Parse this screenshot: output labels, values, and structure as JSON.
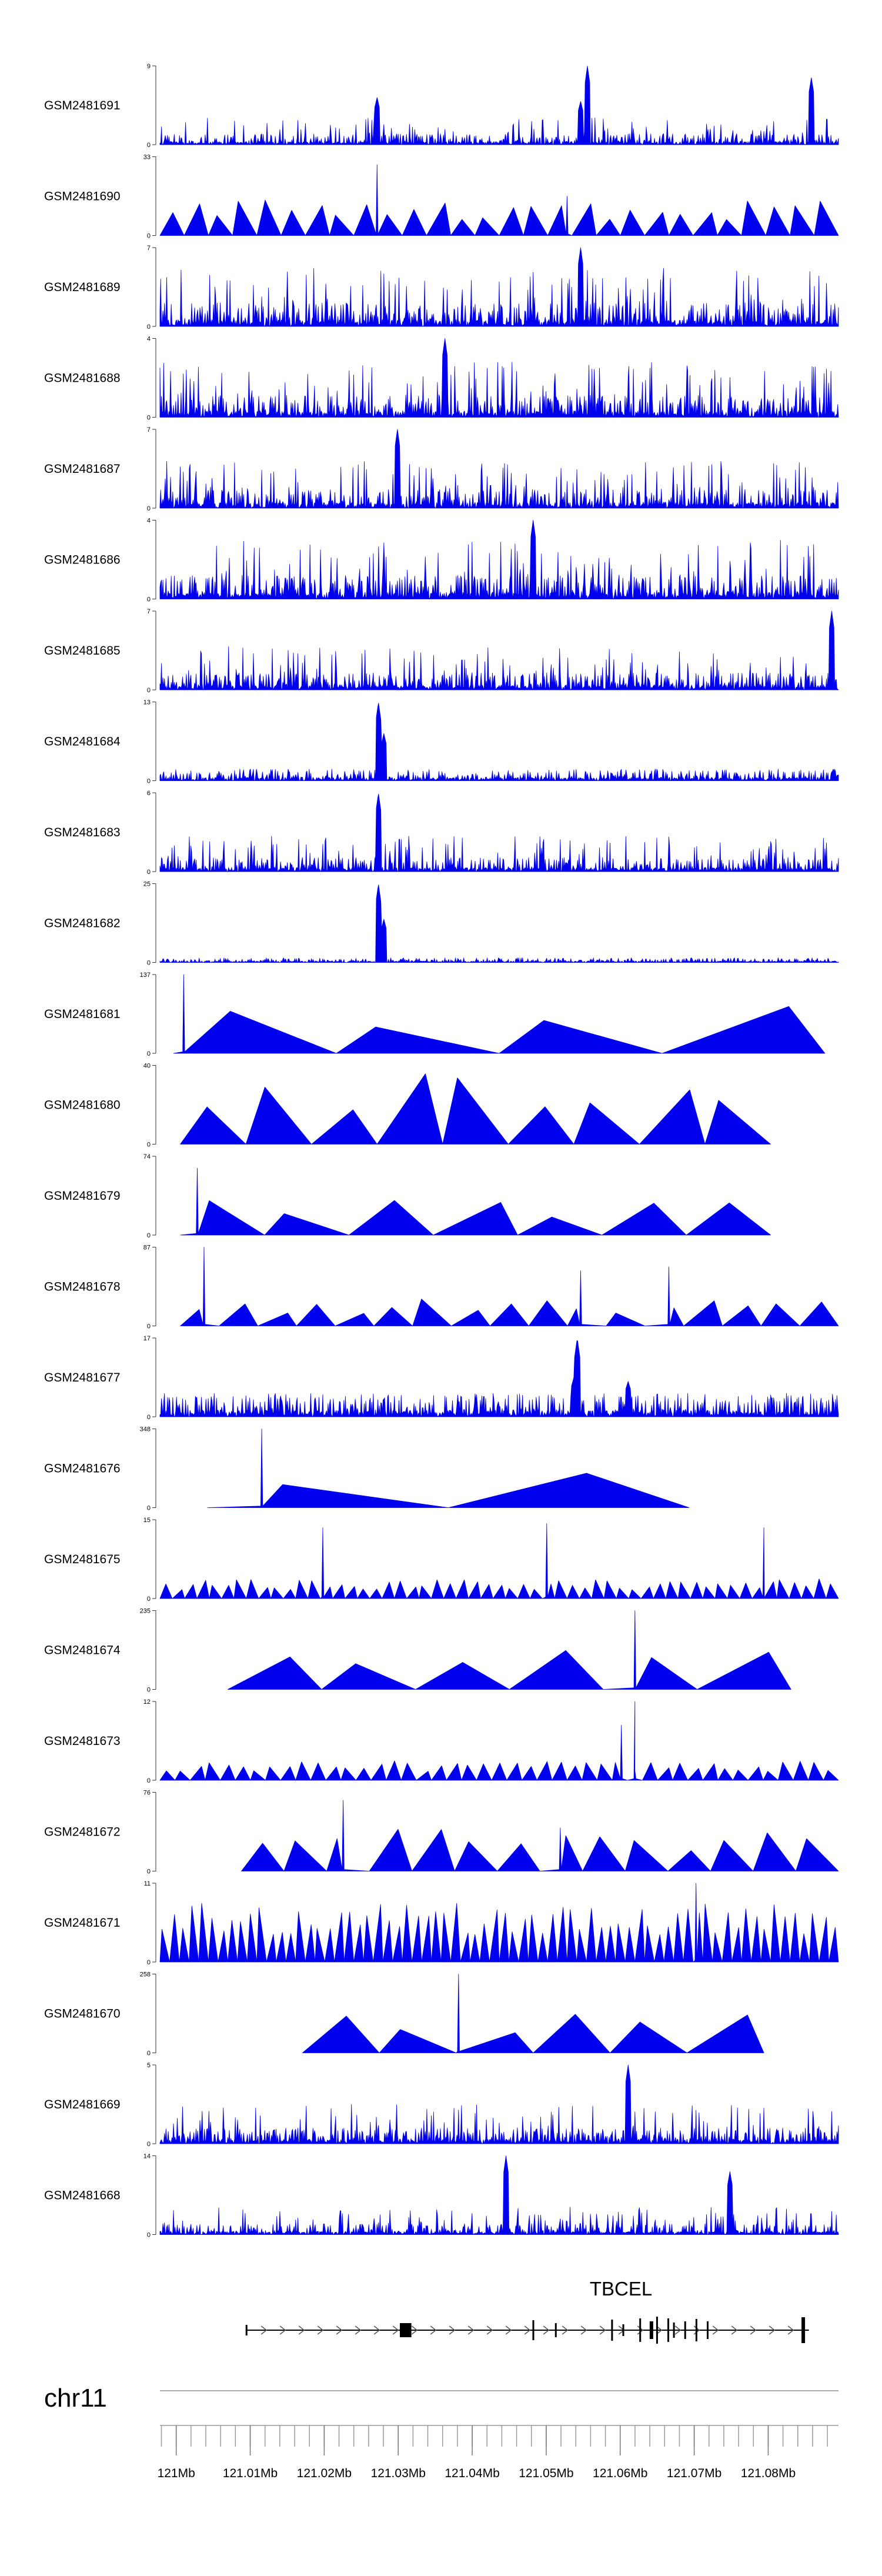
{
  "chart_data": {
    "type": "area",
    "chromosome": "chr11",
    "gene": {
      "name": "TBCEL",
      "strand": "+",
      "start_mb": 121.0095,
      "end_mb": 121.0855
    },
    "x_axis": {
      "unit": "Mb",
      "range_mb": [
        120.9978,
        121.0895
      ],
      "ticks": [
        {
          "value": 121.0,
          "label": "121Mb"
        },
        {
          "value": 121.01,
          "label": "121.01Mb"
        },
        {
          "value": 121.02,
          "label": "121.02Mb"
        },
        {
          "value": 121.03,
          "label": "121.03Mb"
        },
        {
          "value": 121.04,
          "label": "121.04Mb"
        },
        {
          "value": 121.05,
          "label": "121.05Mb"
        },
        {
          "value": 121.06,
          "label": "121.06Mb"
        },
        {
          "value": 121.07,
          "label": "121.07Mb"
        },
        {
          "value": 121.08,
          "label": "121.08Mb"
        }
      ]
    },
    "tracks": [
      {
        "name": "GSM2481691",
        "ymax": 9,
        "style": "dense",
        "seed": 11,
        "max_frac": 0.35,
        "peaks": [
          [
            0.63,
            1.0
          ],
          [
            0.62,
            0.55
          ],
          [
            0.96,
            0.85
          ],
          [
            0.32,
            0.6
          ]
        ]
      },
      {
        "name": "GSM2481690",
        "ymax": 33,
        "style": "triangle",
        "seed": 12,
        "count": 28,
        "max_frac": 0.45,
        "x_start": 0.0,
        "x_end": 1.0,
        "peaks": [
          [
            0.32,
            0.9
          ],
          [
            0.6,
            0.5
          ]
        ]
      },
      {
        "name": "GSM2481689",
        "ymax": 7,
        "style": "dense",
        "seed": 13,
        "max_frac": 0.75,
        "peaks": [
          [
            0.62,
            1.0
          ]
        ]
      },
      {
        "name": "GSM2481688",
        "ymax": 4,
        "style": "dense",
        "seed": 14,
        "max_frac": 0.7,
        "peaks": [
          [
            0.42,
            1.0
          ]
        ]
      },
      {
        "name": "GSM2481687",
        "ymax": 7,
        "style": "dense",
        "seed": 15,
        "max_frac": 0.6,
        "peaks": [
          [
            0.35,
            1.0
          ]
        ]
      },
      {
        "name": "GSM2481686",
        "ymax": 4,
        "style": "dense",
        "seed": 16,
        "max_frac": 0.75,
        "peaks": [
          [
            0.55,
            1.0
          ]
        ]
      },
      {
        "name": "GSM2481685",
        "ymax": 7,
        "style": "dense",
        "seed": 17,
        "max_frac": 0.55,
        "peaks": [
          [
            0.99,
            1.0
          ]
        ]
      },
      {
        "name": "GSM2481684",
        "ymax": 13,
        "style": "sparse",
        "seed": 18,
        "max_frac": 0.15,
        "peaks": [
          [
            0.322,
            1.0
          ],
          [
            0.33,
            0.6
          ]
        ]
      },
      {
        "name": "GSM2481683",
        "ymax": 6,
        "style": "dense",
        "seed": 19,
        "max_frac": 0.45,
        "peaks": [
          [
            0.322,
            1.0
          ]
        ]
      },
      {
        "name": "GSM2481682",
        "ymax": 25,
        "style": "sparse",
        "seed": 20,
        "max_frac": 0.06,
        "peaks": [
          [
            0.322,
            1.0
          ],
          [
            0.33,
            0.55
          ]
        ]
      },
      {
        "name": "GSM2481681",
        "ymax": 137,
        "style": "triangle",
        "seed": 21,
        "count": 4,
        "max_frac": 0.6,
        "x_start": 0.02,
        "x_end": 0.98,
        "peaks": [
          [
            0.035,
            1.0
          ]
        ]
      },
      {
        "name": "GSM2481680",
        "ymax": 40,
        "style": "triangle",
        "seed": 22,
        "count": 9,
        "max_frac": 0.95,
        "x_start": 0.03,
        "x_end": 0.9
      },
      {
        "name": "GSM2481679",
        "ymax": 74,
        "style": "triangle",
        "seed": 23,
        "count": 7,
        "max_frac": 0.5,
        "x_start": 0.03,
        "x_end": 0.9,
        "peaks": [
          [
            0.055,
            0.85
          ]
        ]
      },
      {
        "name": "GSM2481678",
        "ymax": 87,
        "style": "triangle",
        "seed": 24,
        "count": 17,
        "max_frac": 0.35,
        "x_start": 0.03,
        "x_end": 1.0,
        "peaks": [
          [
            0.065,
            1.0
          ],
          [
            0.62,
            0.7
          ],
          [
            0.75,
            0.75
          ]
        ]
      },
      {
        "name": "GSM2481677",
        "ymax": 17,
        "style": "sparse",
        "seed": 25,
        "max_frac": 0.3,
        "peaks": [
          [
            0.615,
            1.0
          ],
          [
            0.61,
            0.5
          ],
          [
            0.69,
            0.45
          ]
        ]
      },
      {
        "name": "GSM2481676",
        "ymax": 348,
        "style": "triangle",
        "seed": 26,
        "count": 2,
        "max_frac": 0.5,
        "x_start": 0.07,
        "x_end": 0.78,
        "peaks": [
          [
            0.15,
            1.0
          ]
        ]
      },
      {
        "name": "GSM2481675",
        "ymax": 15,
        "style": "triangle",
        "seed": 27,
        "count": 55,
        "max_frac": 0.25,
        "x_start": 0.0,
        "x_end": 1.0,
        "peaks": [
          [
            0.24,
            0.9
          ],
          [
            0.57,
            0.95
          ],
          [
            0.89,
            0.9
          ]
        ]
      },
      {
        "name": "GSM2481674",
        "ymax": 235,
        "style": "triangle",
        "seed": 28,
        "count": 6,
        "max_frac": 0.5,
        "x_start": 0.1,
        "x_end": 0.93,
        "peaks": [
          [
            0.7,
            1.0
          ]
        ]
      },
      {
        "name": "GSM2481673",
        "ymax": 12,
        "style": "triangle",
        "seed": 29,
        "count": 45,
        "max_frac": 0.25,
        "x_start": 0.0,
        "x_end": 1.0,
        "peaks": [
          [
            0.7,
            1.0
          ],
          [
            0.68,
            0.7
          ]
        ]
      },
      {
        "name": "GSM2481672",
        "ymax": 76,
        "style": "triangle",
        "seed": 30,
        "count": 14,
        "max_frac": 0.55,
        "x_start": 0.12,
        "x_end": 1.0,
        "peaks": [
          [
            0.27,
            0.9
          ],
          [
            0.59,
            0.55
          ]
        ]
      },
      {
        "name": "GSM2481671",
        "ymax": 11,
        "style": "triangle",
        "seed": 31,
        "count": 70,
        "max_frac": 0.75,
        "x_start": 0.0,
        "x_end": 1.0,
        "peaks": [
          [
            0.79,
            1.0
          ]
        ]
      },
      {
        "name": "GSM2481670",
        "ymax": 258,
        "style": "triangle",
        "seed": 32,
        "count": 6,
        "max_frac": 0.55,
        "x_start": 0.21,
        "x_end": 0.89,
        "peaks": [
          [
            0.44,
            1.0
          ]
        ]
      },
      {
        "name": "GSM2481669",
        "ymax": 5,
        "style": "dense",
        "seed": 33,
        "max_frac": 0.5,
        "peaks": [
          [
            0.69,
            1.0
          ]
        ]
      },
      {
        "name": "GSM2481668",
        "ymax": 14,
        "style": "dense",
        "seed": 34,
        "max_frac": 0.35,
        "peaks": [
          [
            0.51,
            1.0
          ],
          [
            0.84,
            0.8
          ]
        ]
      }
    ]
  }
}
